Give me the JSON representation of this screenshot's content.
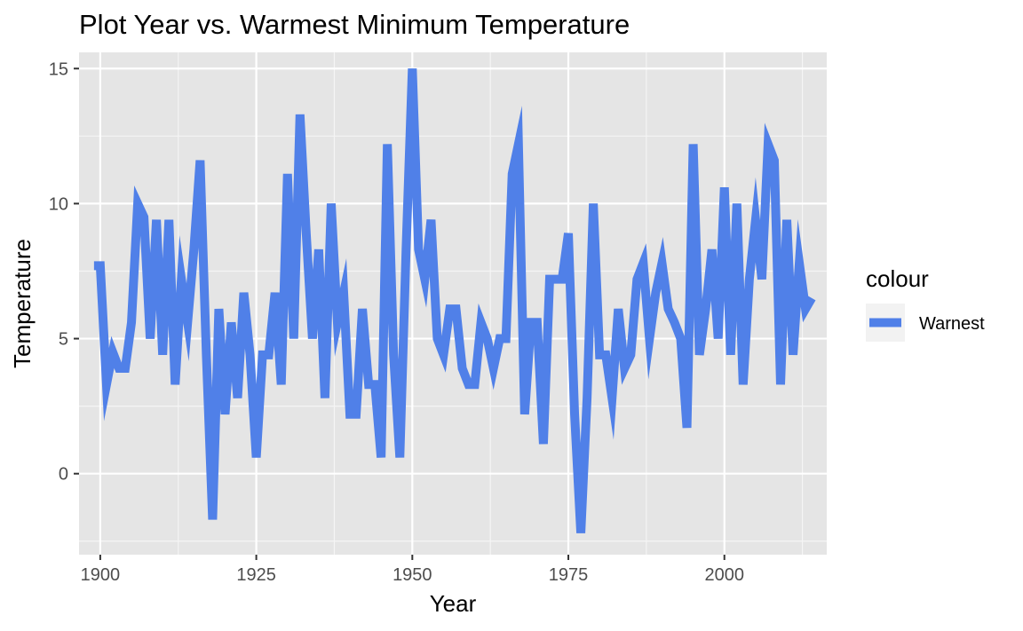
{
  "chart_data": {
    "type": "line",
    "title": "Plot Year vs. Warmest Minimum Temperature",
    "xlabel": "Year",
    "ylabel": "Temperature",
    "xlim": [
      1896.6,
      2016.4
    ],
    "ylim": [
      -3.0,
      15.6
    ],
    "x_ticks": [
      1900,
      1925,
      1950,
      1975,
      2000
    ],
    "y_ticks": [
      0,
      5,
      10,
      15
    ],
    "x_tick_labels": [
      "1900",
      "1925",
      "1950",
      "1975",
      "2000"
    ],
    "y_tick_labels": [
      "0",
      "5",
      "10",
      "15"
    ],
    "grid": true,
    "legend": {
      "title": "colour",
      "position": "right",
      "entries": [
        "Warnest"
      ]
    },
    "series": [
      {
        "name": "Warnest",
        "color": "#5080E8",
        "x": [
          1899,
          1900,
          1901,
          1902,
          1903,
          1904,
          1905,
          1906,
          1907,
          1908,
          1909,
          1910,
          1911,
          1912,
          1913,
          1914,
          1915,
          1916,
          1917,
          1918,
          1919,
          1920,
          1921,
          1922,
          1923,
          1924,
          1925,
          1926,
          1927,
          1928,
          1929,
          1930,
          1931,
          1932,
          1933,
          1934,
          1935,
          1936,
          1937,
          1938,
          1939,
          1940,
          1941,
          1942,
          1943,
          1944,
          1945,
          1946,
          1947,
          1948,
          1949,
          1950,
          1951,
          1952,
          1953,
          1954,
          1955,
          1956,
          1957,
          1958,
          1959,
          1960,
          1961,
          1962,
          1963,
          1964,
          1965,
          1966,
          1967,
          1968,
          1969,
          1970,
          1971,
          1972,
          1973,
          1974,
          1975,
          1976,
          1977,
          1978,
          1979,
          1980,
          1981,
          1982,
          1983,
          1984,
          1985,
          1986,
          1987,
          1988,
          1989,
          1990,
          1991,
          1992,
          1993,
          1994,
          1995,
          1996,
          1997,
          1998,
          1999,
          2000,
          2001,
          2002,
          2003,
          2004,
          2005,
          2006,
          2007,
          2008,
          2009,
          2010,
          2011,
          2012,
          2013,
          2014
        ],
        "y": [
          7.7,
          7.7,
          3.3,
          4.5,
          3.9,
          3.9,
          5.6,
          10.0,
          9.5,
          5.0,
          9.4,
          4.4,
          9.4,
          3.3,
          7.2,
          5.6,
          8.3,
          11.6,
          4.4,
          -1.7,
          6.1,
          2.2,
          5.6,
          2.8,
          6.7,
          4.4,
          0.6,
          4.4,
          4.4,
          6.7,
          3.3,
          11.1,
          5.0,
          13.3,
          8.9,
          5.0,
          8.3,
          2.8,
          10.0,
          5.6,
          6.7,
          2.2,
          2.2,
          6.1,
          3.3,
          3.3,
          0.6,
          12.2,
          4.4,
          0.6,
          8.3,
          15.0,
          8.3,
          7.2,
          9.4,
          5.0,
          4.4,
          6.1,
          6.1,
          3.9,
          3.3,
          3.3,
          5.6,
          5.0,
          3.9,
          5.0,
          5.0,
          11.1,
          12.2,
          2.2,
          5.6,
          5.6,
          1.1,
          7.2,
          7.2,
          7.2,
          8.9,
          2.2,
          -2.2,
          2.8,
          10.0,
          4.4,
          4.4,
          2.8,
          6.1,
          3.9,
          4.4,
          7.2,
          7.8,
          5.0,
          6.7,
          7.8,
          6.1,
          5.6,
          5.0,
          1.7,
          12.2,
          4.4,
          6.1,
          8.3,
          5.0,
          10.6,
          4.4,
          10.0,
          3.3,
          7.2,
          9.4,
          7.2,
          12.2,
          11.6,
          3.3,
          9.4,
          4.4,
          7.8,
          6.1,
          6.5
        ]
      }
    ]
  }
}
